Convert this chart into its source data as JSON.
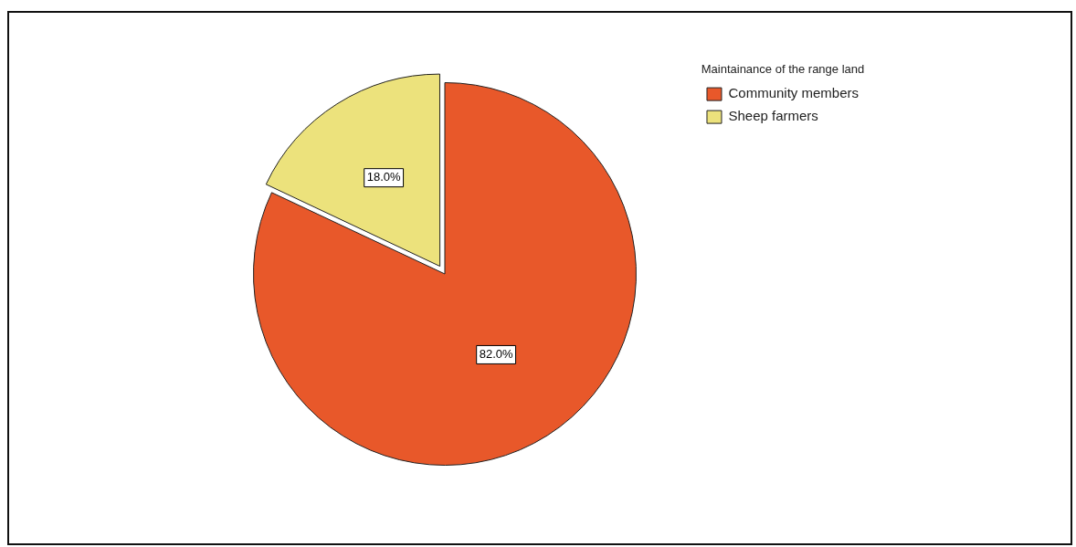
{
  "chart_data": {
    "type": "pie",
    "legend_title": "Maintainance of the range land",
    "legend": "top right",
    "categories": [
      "Community members",
      "Sheep farmers"
    ],
    "values": [
      82.0,
      18.0
    ],
    "colors": [
      "#e8582a",
      "#ece27c"
    ],
    "value_labels": [
      "82.0%",
      "18.0%"
    ]
  }
}
